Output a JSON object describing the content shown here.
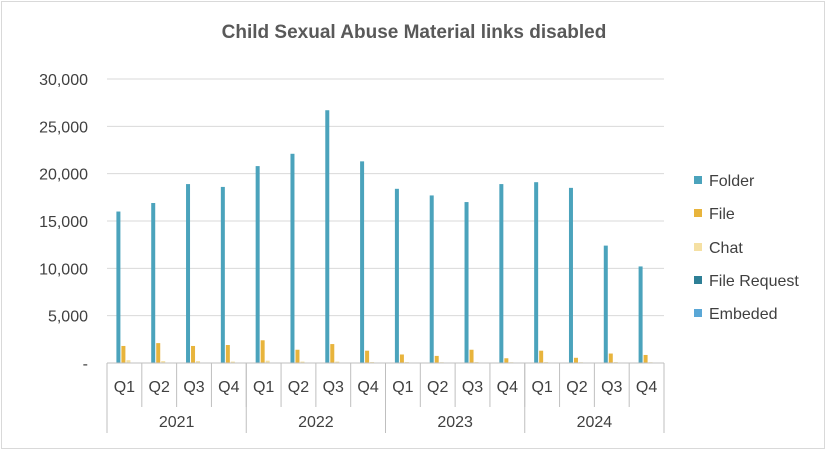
{
  "chart_data": {
    "type": "bar",
    "title": "Child Sexual Abuse Material links disabled",
    "xlabel": "",
    "ylabel": "",
    "ylim": [
      0,
      30000
    ],
    "yticks": [
      0,
      5000,
      10000,
      15000,
      20000,
      25000,
      30000
    ],
    "ytick_labels": [
      "-",
      "5,000",
      "10,000",
      "15,000",
      "20,000",
      "25,000",
      "30,000"
    ],
    "grid": true,
    "legend_position": "right",
    "groups": [
      {
        "label": "2021",
        "quarters": [
          "Q1",
          "Q2",
          "Q3",
          "Q4"
        ]
      },
      {
        "label": "2022",
        "quarters": [
          "Q1",
          "Q2",
          "Q3",
          "Q4"
        ]
      },
      {
        "label": "2023",
        "quarters": [
          "Q1",
          "Q2",
          "Q3",
          "Q4"
        ]
      },
      {
        "label": "2024",
        "quarters": [
          "Q1",
          "Q2",
          "Q3",
          "Q4"
        ]
      }
    ],
    "series": [
      {
        "name": "Folder",
        "color": "#4ba3bc",
        "values": [
          16000,
          16900,
          18900,
          18600,
          20800,
          22100,
          26700,
          21300,
          18400,
          17700,
          17000,
          18900,
          19100,
          18500,
          12400,
          10200
        ]
      },
      {
        "name": "File",
        "color": "#e8b43c",
        "values": [
          1800,
          2100,
          1800,
          1900,
          2400,
          1400,
          2000,
          1300,
          900,
          750,
          1400,
          500,
          1300,
          550,
          1000,
          850
        ]
      },
      {
        "name": "Chat",
        "color": "#f5e0a3",
        "values": [
          300,
          200,
          200,
          150,
          250,
          150,
          150,
          100,
          100,
          80,
          100,
          80,
          100,
          80,
          100,
          80
        ]
      },
      {
        "name": "File Request",
        "color": "#2e7f96",
        "values": [
          0,
          0,
          0,
          0,
          0,
          0,
          0,
          0,
          0,
          0,
          0,
          0,
          0,
          0,
          0,
          0
        ]
      },
      {
        "name": "Embeded",
        "color": "#5aa7d6",
        "values": [
          0,
          0,
          0,
          0,
          0,
          0,
          0,
          0,
          0,
          0,
          0,
          0,
          0,
          0,
          0,
          0
        ]
      }
    ]
  }
}
